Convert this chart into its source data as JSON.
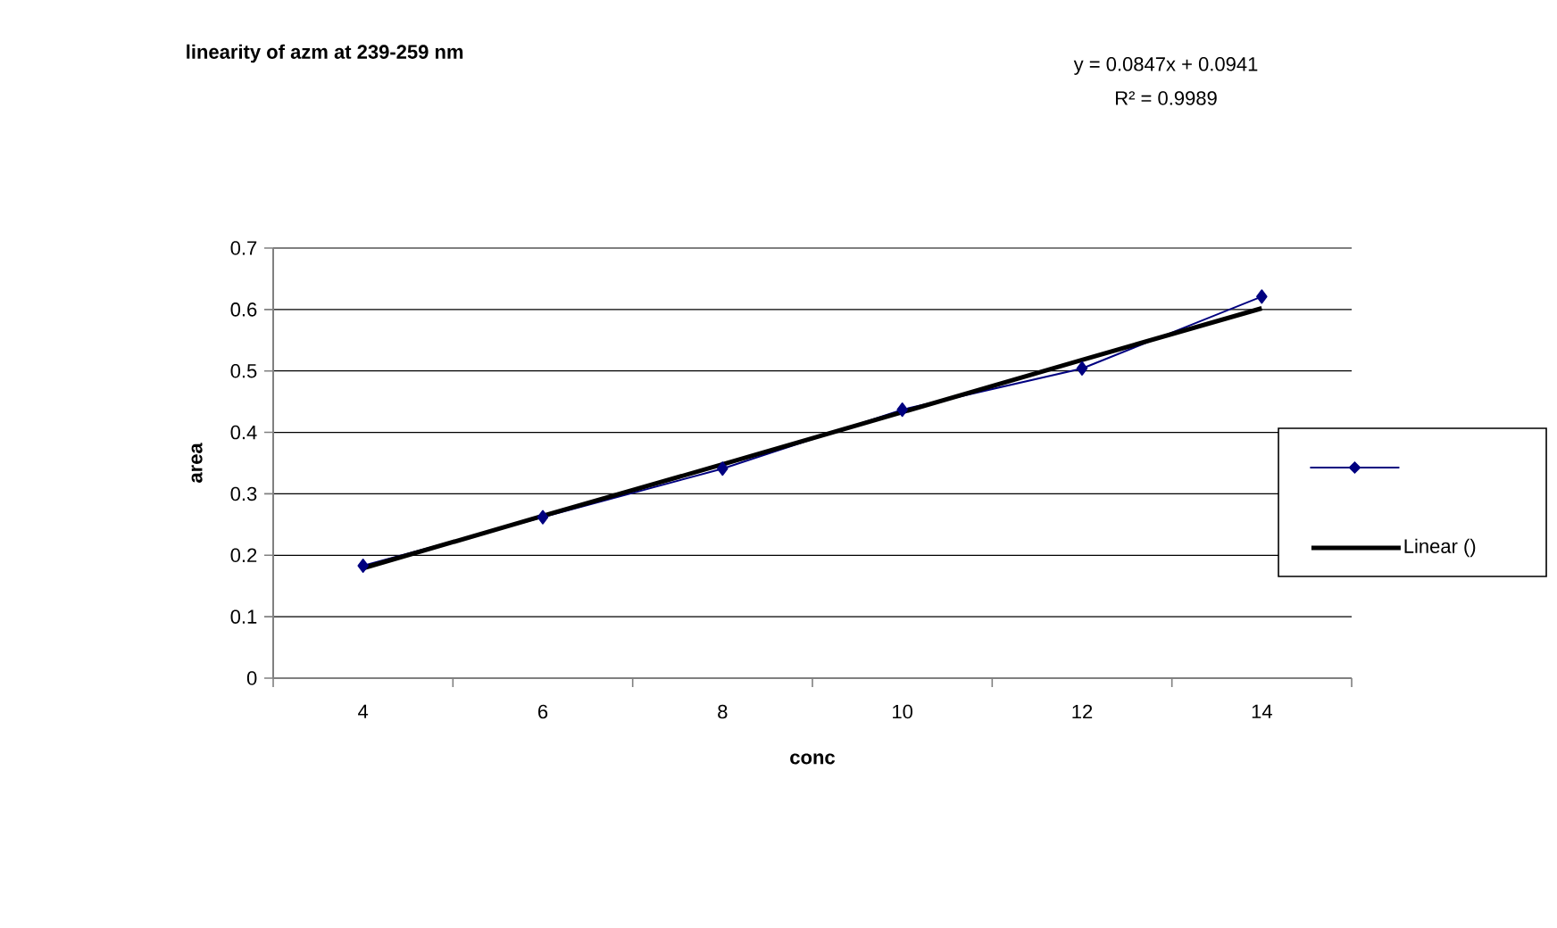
{
  "chart_data": {
    "type": "line",
    "title": "linearity of azm at 239-259    nm",
    "xlabel": "conc",
    "ylabel": "area",
    "categories": [
      "4",
      "6",
      "8",
      "10",
      "12",
      "14"
    ],
    "series": [
      {
        "color": "#000080",
        "marker": "diamond",
        "values": [
          0.183,
          0.262,
          0.341,
          0.437,
          0.504,
          0.621
        ]
      },
      {
        "name": "Linear ()",
        "color": "#000000",
        "marker": "none",
        "values": [
          0.179,
          0.264,
          0.348,
          0.433,
          0.518,
          0.602
        ]
      }
    ],
    "ylim": [
      0,
      0.7
    ],
    "yticks": [
      0,
      0.1,
      0.2,
      0.3,
      0.4,
      0.5,
      0.6,
      0.7
    ],
    "grid": "y",
    "legend": "right",
    "annotations": [
      "y = 0.0847x + 0.0941",
      "R² = 0.9989"
    ]
  }
}
